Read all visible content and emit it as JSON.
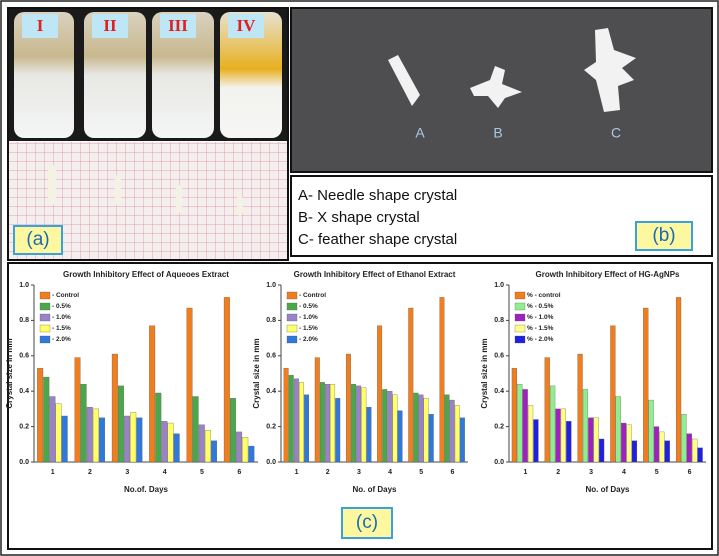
{
  "figure": {
    "tube_labels": [
      "I",
      "II",
      "III",
      "IV"
    ],
    "crystal_labels": [
      "A",
      "B",
      "C"
    ],
    "descriptions": [
      "A- Needle shape crystal",
      "B- X shape crystal",
      "C- feather shape crystal"
    ],
    "panel_labels": [
      "(a)",
      "(b)",
      "(c)"
    ]
  },
  "chart_data": [
    {
      "type": "bar",
      "title": "Growth Inhibitory Effect of Aqueoes Extract",
      "x_label": "No.of. Days",
      "y_label": "Crystal size in mm",
      "categories": [
        "1",
        "2",
        "3",
        "4",
        "5",
        "6"
      ],
      "ylim": [
        0,
        1.0
      ],
      "yticks": [
        {
          "value": 0,
          "label": "0.0"
        },
        0.2,
        0.4,
        0.6,
        0.8,
        {
          "value": 1.0,
          "label": "1.0"
        }
      ],
      "series": [
        {
          "name": "- Control",
          "color": "#f07d1e",
          "values": [
            0.53,
            0.59,
            0.61,
            0.77,
            0.87,
            0.93
          ]
        },
        {
          "name": "- 0.5%",
          "color": "#4aa84a",
          "values": [
            0.48,
            0.44,
            0.43,
            0.39,
            0.37,
            0.36
          ]
        },
        {
          "name": "- 1.0%",
          "color": "#9a82c6",
          "values": [
            0.37,
            0.31,
            0.26,
            0.23,
            0.21,
            0.17
          ]
        },
        {
          "name": "- 1.5%",
          "color": "#ffff66",
          "values": [
            0.33,
            0.3,
            0.28,
            0.22,
            0.18,
            0.14
          ]
        },
        {
          "name": "- 2.0%",
          "color": "#2f78dc",
          "values": [
            0.26,
            0.25,
            0.25,
            0.16,
            0.12,
            0.09
          ]
        }
      ]
    },
    {
      "type": "bar",
      "title": "Growth Inhibitory Effect of Ethanol Extract",
      "x_label": "No. of Days",
      "y_label": "Crystal size in mm",
      "categories": [
        "1",
        "2",
        "3",
        "4",
        "5",
        "6"
      ],
      "ylim": [
        0,
        1.0
      ],
      "yticks": [
        {
          "value": 0,
          "label": "0.0"
        },
        0.2,
        0.4,
        0.6,
        0.8,
        {
          "value": 1.0,
          "label": "1.0"
        }
      ],
      "series": [
        {
          "name": "- Control",
          "color": "#f07d1e",
          "values": [
            0.53,
            0.59,
            0.61,
            0.77,
            0.87,
            0.93
          ]
        },
        {
          "name": "- 0.5%",
          "color": "#4aa84a",
          "values": [
            0.49,
            0.45,
            0.44,
            0.41,
            0.39,
            0.38
          ]
        },
        {
          "name": "- 1.0%",
          "color": "#9a82c6",
          "values": [
            0.47,
            0.44,
            0.43,
            0.4,
            0.38,
            0.35
          ]
        },
        {
          "name": "- 1.5%",
          "color": "#ffff66",
          "values": [
            0.45,
            0.44,
            0.42,
            0.38,
            0.36,
            0.32
          ]
        },
        {
          "name": "- 2.0%",
          "color": "#2f78dc",
          "values": [
            0.38,
            0.36,
            0.31,
            0.29,
            0.27,
            0.25
          ]
        }
      ]
    },
    {
      "type": "bar",
      "title": "Growth Inhibitory Effect of HG-AgNPs",
      "x_label": "No. of Days",
      "y_label": "Crystal size in mm",
      "categories": [
        "1",
        "2",
        "3",
        "4",
        "5",
        "6"
      ],
      "ylim": [
        0,
        1.0
      ],
      "yticks": [
        {
          "value": 0,
          "label": "0.0"
        },
        0.2,
        0.4,
        0.6,
        0.8,
        {
          "value": 1.0,
          "label": "1.0"
        }
      ],
      "series": [
        {
          "name": "% - control",
          "color": "#f07d1e",
          "values": [
            0.53,
            0.59,
            0.61,
            0.77,
            0.87,
            0.93
          ]
        },
        {
          "name": "% - 0.5%",
          "color": "#90ee90",
          "values": [
            0.44,
            0.43,
            0.41,
            0.37,
            0.35,
            0.27
          ]
        },
        {
          "name": "% - 1.0%",
          "color": "#a020c0",
          "values": [
            0.41,
            0.3,
            0.25,
            0.22,
            0.2,
            0.16
          ]
        },
        {
          "name": "% - 1.5%",
          "color": "#ffff88",
          "values": [
            0.32,
            0.3,
            0.25,
            0.21,
            0.17,
            0.13
          ]
        },
        {
          "name": "% - 2.0%",
          "color": "#2020e0",
          "values": [
            0.24,
            0.23,
            0.13,
            0.12,
            0.12,
            0.08
          ]
        }
      ]
    }
  ]
}
